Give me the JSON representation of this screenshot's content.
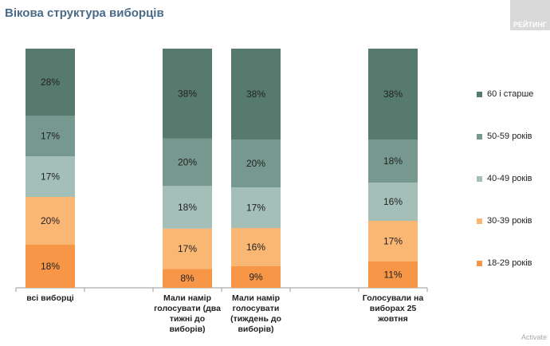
{
  "title": "Вікова структура виборців",
  "logo": "РЕЙТИНГ",
  "watermark": "Activate",
  "chart_data": {
    "type": "bar",
    "stacked": true,
    "title": "Вікова структура виборців",
    "categories": [
      "всі виборці",
      "",
      "Мали намір голосувати (два тижні до виборів)",
      "Мали намір голосувати (тиждень до виборів)",
      "",
      "Голосували на виборах 25 жовтня"
    ],
    "series": [
      {
        "name": "18-29 років",
        "color": "#f79646",
        "values": [
          18,
          null,
          8,
          9,
          null,
          11
        ]
      },
      {
        "name": "30-39 років",
        "color": "#fab673",
        "values": [
          20,
          null,
          17,
          16,
          null,
          17
        ]
      },
      {
        "name": "40-49 років",
        "color": "#a3bfb8",
        "values": [
          17,
          null,
          18,
          17,
          null,
          16
        ]
      },
      {
        "name": "50-59 років",
        "color": "#76988f",
        "values": [
          17,
          null,
          20,
          20,
          null,
          18
        ]
      },
      {
        "name": "60 і старше",
        "color": "#567a6e",
        "values": [
          28,
          null,
          38,
          38,
          null,
          38
        ]
      }
    ],
    "legend": "right",
    "ylim": [
      0,
      100
    ]
  }
}
